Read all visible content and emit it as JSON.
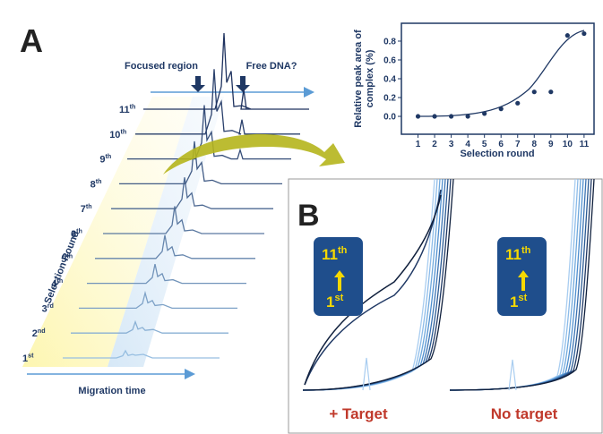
{
  "panel_a": {
    "label": "A",
    "y_axis_label": "Selection Round",
    "x_axis_label": "Migration time",
    "focused_region": "Focused region",
    "free_dna": "Free DNA?",
    "rounds": [
      {
        "base": "1",
        "sup": "st"
      },
      {
        "base": "2",
        "sup": "nd"
      },
      {
        "base": "3",
        "sup": "rd"
      },
      {
        "base": "4",
        "sup": "th"
      },
      {
        "base": "5",
        "sup": "th"
      },
      {
        "base": "6",
        "sup": "th"
      },
      {
        "base": "7",
        "sup": "th"
      },
      {
        "base": "8",
        "sup": "th"
      },
      {
        "base": "9",
        "sup": "th"
      },
      {
        "base": "10",
        "sup": "th"
      },
      {
        "base": "11",
        "sup": "th"
      }
    ]
  },
  "chart_data": {
    "type": "scatter",
    "y_label": [
      "Relative peak area of",
      "complex (%)"
    ],
    "x_label": "Selection round",
    "x": [
      1,
      2,
      3,
      4,
      5,
      6,
      7,
      8,
      9,
      10,
      11
    ],
    "values": [
      0,
      0,
      0,
      0,
      0.03,
      0.08,
      0.14,
      0.26,
      0.26,
      0.86,
      0.88
    ],
    "color": "#1f3864",
    "xlim": [
      0,
      11.6
    ],
    "ylim": [
      -0.19,
      0.99
    ],
    "xticks": [
      1,
      2,
      3,
      4,
      5,
      6,
      7,
      8,
      9,
      10,
      11
    ],
    "yticks": [
      {
        "value": 0,
        "label": "0.0"
      },
      0.2,
      0.4,
      0.6,
      0.8
    ]
  },
  "panel_b": {
    "label": "B",
    "left_label": "+ Target",
    "right_label": "No target",
    "legend_top": {
      "base": "11",
      "sup": "th"
    },
    "legend_bottom": {
      "base": "1",
      "sup": "st"
    }
  }
}
